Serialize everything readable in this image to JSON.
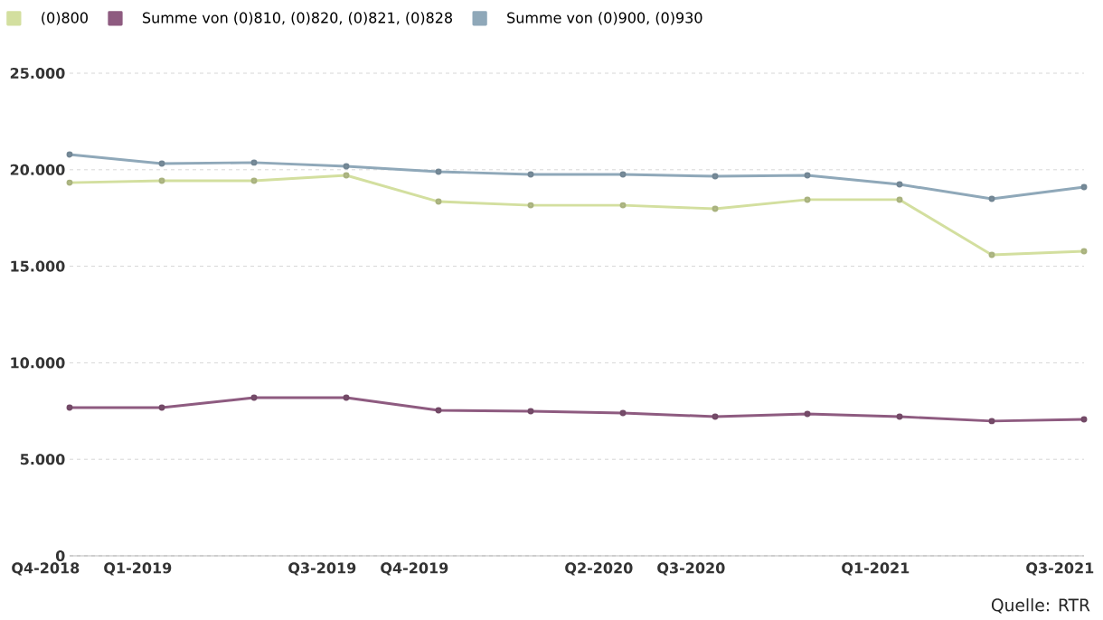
{
  "chart_data": {
    "type": "line",
    "categories": [
      "Q4-2018",
      "Q1-2019",
      null,
      "Q3-2019",
      "Q4-2019",
      null,
      "Q2-2020",
      "Q3-2020",
      null,
      "Q1-2021",
      null,
      "Q3-2021"
    ],
    "series": [
      {
        "name": "(0)800",
        "color": "#d3df9f",
        "values": [
          19330,
          19430,
          19430,
          19710,
          18350,
          18160,
          18160,
          17980,
          18450,
          18450,
          15590,
          15780
        ]
      },
      {
        "name": "Summe von (0)810, (0)820, (0)821, (0)828",
        "color": "#8e5b80",
        "values": [
          7680,
          7680,
          8190,
          8190,
          7540,
          7490,
          7400,
          7210,
          7350,
          7210,
          6980,
          7070
        ]
      },
      {
        "name": "Summe von (0)900, (0)930",
        "color": "#8fa8b9",
        "values": [
          20790,
          20320,
          20370,
          20180,
          19900,
          19760,
          19760,
          19660,
          19710,
          19240,
          18490,
          19100
        ]
      }
    ],
    "ylim": [
      0,
      25000
    ],
    "yticks": [
      {
        "value": 0,
        "label": "0"
      },
      {
        "value": 5000,
        "label": "5.000"
      },
      {
        "value": 10000,
        "label": "10.000"
      },
      {
        "value": 15000,
        "label": "15.000"
      },
      {
        "value": 20000,
        "label": "20.000"
      },
      {
        "value": 25000,
        "label": "25.000"
      }
    ],
    "grid": "y",
    "legend": "top left",
    "marker": "circle",
    "annotations": [
      "Quelle: RTR"
    ]
  }
}
